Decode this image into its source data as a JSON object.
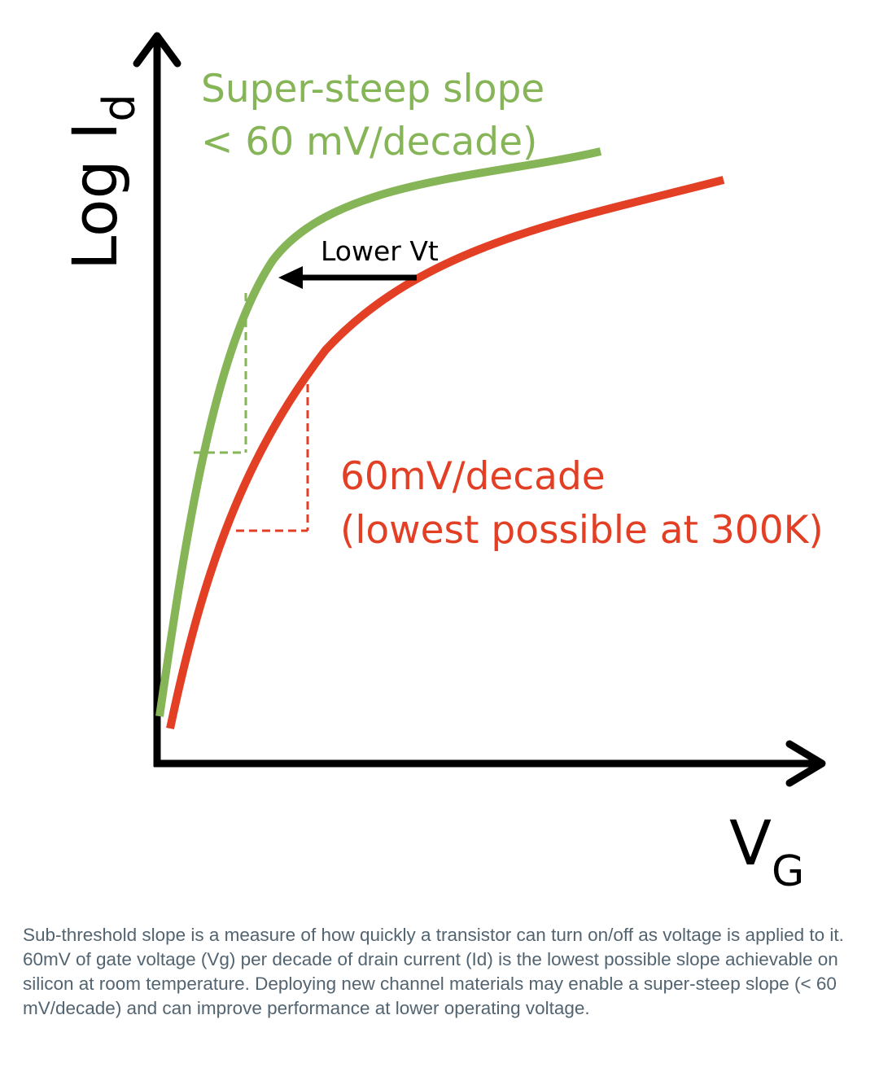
{
  "diagram": {
    "y_axis_label_main": "Log I",
    "y_axis_label_sub": "d",
    "x_axis_label_main": "V",
    "x_axis_label_sub": "G",
    "green_label_line1": "Super-steep slope",
    "green_label_line2": "< 60 mV/decade)",
    "red_label_line1": "60mV/decade",
    "red_label_line2": "(lowest possible at 300K)",
    "arrow_label": "Lower Vt",
    "colors": {
      "green": "#85b557",
      "red": "#e23f24",
      "axis": "#000000"
    }
  },
  "caption": "Sub-threshold slope is a measure of how quickly a transistor can turn on/off as voltage is applied to it. 60mV of gate voltage (Vg) per decade of drain current (Id) is the lowest possible slope achievable on silicon at room temperature. Deploying new channel materials may enable a super-steep slope (< 60 mV/decade) and can improve performance at lower operating voltage."
}
